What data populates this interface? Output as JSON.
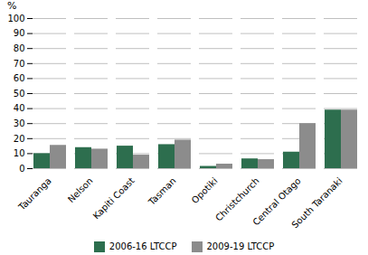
{
  "chart_data": {
    "type": "bar",
    "categories": [
      "Tauranga",
      "Nelson",
      "Kapiti Coast",
      "Tasman",
      "Opotiki",
      "Christchurch",
      "Central Otago",
      "South Taranaki"
    ],
    "series": [
      {
        "name": "2006-16 LTCCP",
        "color": "#2d6e4e",
        "values": [
          10,
          14,
          15,
          16,
          1.5,
          6.5,
          11,
          39
        ]
      },
      {
        "name": "2009-19 LTCCP",
        "color": "#8c8c8c",
        "values": [
          15.5,
          13,
          9,
          19,
          3,
          6,
          30,
          39
        ]
      }
    ],
    "ylabel": "%",
    "ylim": [
      0,
      100
    ],
    "yticks": [
      0,
      10,
      20,
      30,
      40,
      50,
      60,
      70,
      80,
      90,
      100
    ],
    "grid": true,
    "legend": "bottom"
  }
}
